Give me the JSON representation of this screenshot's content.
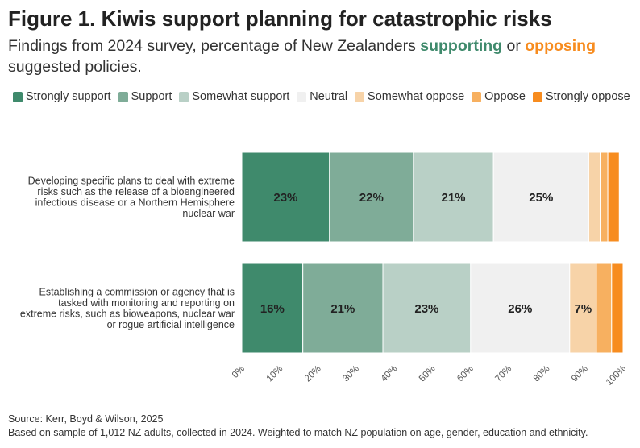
{
  "header": {
    "title": "Figure 1. Kiwis support planning for catastrophic risks",
    "subtitle_pre": "Findings from 2024 survey, percentage of New Zealanders ",
    "subtitle_supporting": "supporting",
    "subtitle_or": " or ",
    "subtitle_opposing": "opposing",
    "subtitle_post": " suggested policies."
  },
  "footer": {
    "source": "Source: Kerr, Boyd & Wilson, 2025",
    "note": "Based on sample of 1,012 NZ adults, collected in 2024. Weighted to match NZ population on age, gender, education and ethnicity."
  },
  "chart_data": {
    "type": "bar",
    "orientation": "horizontal",
    "stacked": true,
    "title": "Figure 1. Kiwis support planning for catastrophic risks",
    "xlabel": "",
    "ylabel": "",
    "xlim": [
      0,
      100
    ],
    "x_ticks": [
      "0%",
      "10%",
      "20%",
      "30%",
      "40%",
      "50%",
      "60%",
      "70%",
      "80%",
      "90%",
      "100%"
    ],
    "legend_position": "top-left",
    "grid": false,
    "categories": [
      [
        "Developing specific plans to deal with extreme",
        "risks such as the release of a bioengineered",
        "infectious disease or a Northern Hemisphere",
        "nuclear war"
      ],
      [
        "Establishing a commission or agency that is",
        "tasked with monitoring and reporting on",
        "extreme risks, such as bioweapons, nuclear war",
        "or rogue artificial intelligence"
      ]
    ],
    "series": [
      {
        "name": "Strongly support",
        "color": "#3f8a6c",
        "label_color": "#222222",
        "values": [
          23,
          16
        ],
        "labels": [
          "23%",
          "16%"
        ]
      },
      {
        "name": "Support",
        "color": "#7fac98",
        "label_color": "#222222",
        "values": [
          22,
          21
        ],
        "labels": [
          "22%",
          "21%"
        ]
      },
      {
        "name": "Somewhat support",
        "color": "#b9d0c6",
        "label_color": "#222222",
        "values": [
          21,
          23
        ],
        "labels": [
          "21%",
          "23%"
        ]
      },
      {
        "name": "Neutral",
        "color": "#f0f0f0",
        "label_color": "#222222",
        "values": [
          25,
          26
        ],
        "labels": [
          "25%",
          "26%"
        ]
      },
      {
        "name": "Somewhat oppose",
        "color": "#f7d3a8",
        "label_color": "#222222",
        "values": [
          3,
          7
        ],
        "labels": [
          "",
          "7%"
        ]
      },
      {
        "name": "Oppose",
        "color": "#f7b060",
        "label_color": "#222222",
        "values": [
          2,
          4
        ],
        "labels": [
          "",
          ""
        ]
      },
      {
        "name": "Strongly oppose",
        "color": "#f78c1f",
        "label_color": "#222222",
        "values": [
          3,
          3
        ],
        "labels": [
          "",
          ""
        ]
      }
    ]
  }
}
